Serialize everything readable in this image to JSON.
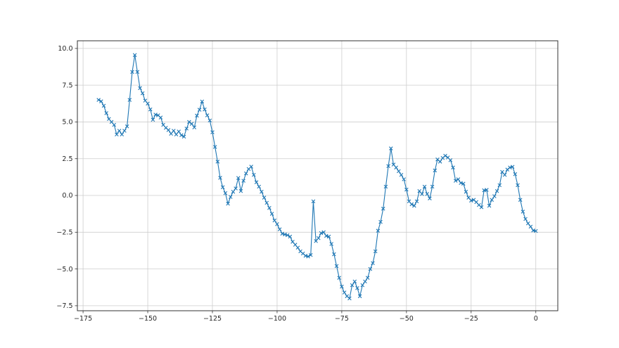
{
  "page": {
    "background": "#ffffff",
    "figure_type": "matplotlib-line-plot"
  },
  "chart_data": {
    "type": "line",
    "title": "",
    "xlabel": "",
    "ylabel": "",
    "legend": null,
    "grid": true,
    "line_color": "#1f77b4",
    "marker": "x",
    "grid_color": "#cdcdcd",
    "spine_color": "#333333",
    "tick_label_color": "#262626",
    "xlim": [
      -177.2,
      8.5
    ],
    "ylim": [
      -7.84,
      10.52
    ],
    "xticks": [
      -175,
      -150,
      -125,
      -100,
      -75,
      -50,
      -25,
      0
    ],
    "xtick_labels": [
      "−175",
      "−150",
      "−125",
      "−100",
      "−75",
      "−50",
      "−25",
      "0"
    ],
    "yticks": [
      -7.5,
      -5.0,
      -2.5,
      0.0,
      2.5,
      5.0,
      7.5,
      10.0
    ],
    "ytick_labels": [
      "−7.5",
      "−5.0",
      "−2.5",
      "0.0",
      "2.5",
      "5.0",
      "7.5",
      "10.0"
    ],
    "x_start": -169,
    "x_step": 1,
    "values": [
      6.5,
      6.4,
      6.1,
      5.6,
      5.2,
      5.0,
      4.8,
      4.15,
      4.4,
      4.15,
      4.4,
      4.7,
      6.5,
      8.4,
      9.55,
      8.4,
      7.3,
      6.95,
      6.45,
      6.25,
      5.85,
      5.15,
      5.5,
      5.45,
      5.3,
      4.8,
      4.6,
      4.45,
      4.2,
      4.4,
      4.15,
      4.35,
      4.1,
      4.0,
      4.55,
      5.0,
      4.87,
      4.63,
      5.43,
      5.83,
      6.39,
      5.85,
      5.45,
      5.1,
      4.3,
      3.3,
      2.3,
      1.2,
      0.56,
      0.16,
      -0.56,
      -0.1,
      0.25,
      0.48,
      1.19,
      0.3,
      1.0,
      1.5,
      1.8,
      1.96,
      1.4,
      0.9,
      0.6,
      0.25,
      -0.15,
      -0.5,
      -0.85,
      -1.25,
      -1.7,
      -1.95,
      -2.3,
      -2.6,
      -2.65,
      -2.7,
      -2.8,
      -3.15,
      -3.35,
      -3.55,
      -3.8,
      -3.95,
      -4.1,
      -4.15,
      -4.05,
      -0.4,
      -3.1,
      -2.9,
      -2.56,
      -2.5,
      -2.75,
      -2.8,
      -3.3,
      -4.0,
      -4.8,
      -5.6,
      -6.2,
      -6.6,
      -6.85,
      -7.0,
      -6.1,
      -5.85,
      -6.3,
      -6.85,
      -6.1,
      -5.85,
      -5.6,
      -5.0,
      -4.6,
      -3.8,
      -2.4,
      -1.8,
      -0.9,
      0.6,
      2.0,
      3.2,
      2.1,
      1.9,
      1.65,
      1.4,
      1.1,
      0.4,
      -0.4,
      -0.6,
      -0.7,
      -0.4,
      0.3,
      0.1,
      0.6,
      0.1,
      -0.2,
      0.6,
      1.7,
      2.45,
      2.3,
      2.55,
      2.7,
      2.58,
      2.4,
      1.9,
      1.0,
      1.1,
      0.85,
      0.8,
      0.25,
      -0.15,
      -0.35,
      -0.3,
      -0.45,
      -0.65,
      -0.8,
      0.35,
      0.38,
      -0.7,
      -0.3,
      -0.05,
      0.3,
      0.7,
      1.6,
      1.4,
      1.76,
      1.9,
      1.95,
      1.45,
      0.7,
      -0.3,
      -1.1,
      -1.6,
      -1.9,
      -2.12,
      -2.38,
      -2.42
    ]
  }
}
